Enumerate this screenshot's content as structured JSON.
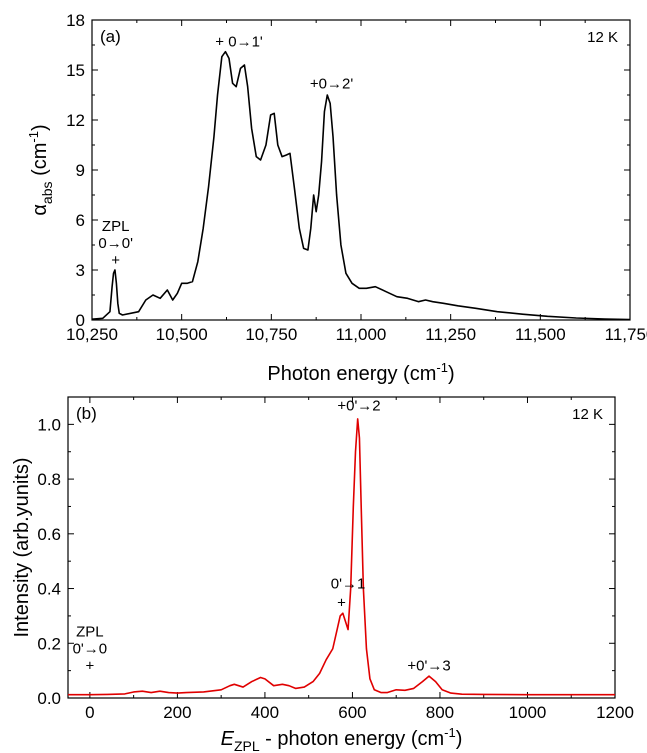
{
  "chart_data": [
    {
      "type": "line",
      "panel_label": "(a)",
      "temperature": "12 K",
      "xlabel": "Photon energy (cm",
      "xlabel_sup": "-1",
      "xlabel_end": ")",
      "ylabel_main": "α",
      "ylabel_sub": "abs",
      "ylabel_rest": " (cm",
      "ylabel_sup": "-1",
      "ylabel_end": ")",
      "xlim": [
        10250,
        11750
      ],
      "ylim": [
        0,
        18
      ],
      "xticks": [
        10250,
        10500,
        10750,
        11000,
        11250,
        11500,
        11750
      ],
      "xtick_labels": [
        "10,250",
        "10,500",
        "10,750",
        "11,000",
        "11,250",
        "11,500",
        "11,750"
      ],
      "yticks": [
        0,
        3,
        6,
        9,
        12,
        15,
        18
      ],
      "ytick_labels": [
        "0",
        "3",
        "6",
        "9",
        "12",
        "15",
        "18"
      ],
      "line_color": "#000000",
      "annotations": [
        {
          "lines": [
            "ZPL",
            "0→0'",
            "+"
          ],
          "x": 10316,
          "y": 3.3
        },
        {
          "lines": [
            "+ 0→1'"
          ],
          "x": 10660,
          "y": 16.4
        },
        {
          "lines": [
            "+0→2'"
          ],
          "x": 10918,
          "y": 13.9
        }
      ],
      "series": [
        {
          "x": [
            10250,
            10280,
            10300,
            10306,
            10310,
            10314,
            10318,
            10322,
            10326,
            10335,
            10380,
            10400,
            10420,
            10440,
            10460,
            10475,
            10488,
            10500,
            10515,
            10530,
            10545,
            10560,
            10575,
            10590,
            10600,
            10612,
            10622,
            10632,
            10642,
            10652,
            10664,
            10675,
            10684,
            10695,
            10708,
            10720,
            10735,
            10748,
            10758,
            10768,
            10780,
            10792,
            10802,
            10815,
            10828,
            10840,
            10852,
            10860,
            10868,
            10875,
            10882,
            10890,
            10898,
            10906,
            10914,
            10922,
            10932,
            10944,
            10958,
            10975,
            10995,
            11015,
            11040,
            11070,
            11100,
            11130,
            11160,
            11180,
            11200,
            11230,
            11270,
            11320,
            11380,
            11450,
            11520,
            11600,
            11680,
            11750
          ],
          "y": [
            0.05,
            0.1,
            0.5,
            2.0,
            2.8,
            3.0,
            2.2,
            1.0,
            0.4,
            0.3,
            0.5,
            1.2,
            1.5,
            1.3,
            1.8,
            1.2,
            1.6,
            2.2,
            2.2,
            2.3,
            3.5,
            5.5,
            8.0,
            11.0,
            13.5,
            15.8,
            16.1,
            15.7,
            14.2,
            14.0,
            15.1,
            15.3,
            14.0,
            11.5,
            9.8,
            9.6,
            10.5,
            12.3,
            12.4,
            10.5,
            9.8,
            9.9,
            10.0,
            7.8,
            5.5,
            4.3,
            4.2,
            5.5,
            7.5,
            6.5,
            7.5,
            9.5,
            12.5,
            13.5,
            13.0,
            11.0,
            7.5,
            4.5,
            2.8,
            2.2,
            1.9,
            1.9,
            2.0,
            1.7,
            1.4,
            1.3,
            1.1,
            1.2,
            1.1,
            1.0,
            0.85,
            0.7,
            0.5,
            0.35,
            0.22,
            0.12,
            0.06,
            0.03
          ]
        }
      ]
    },
    {
      "type": "line",
      "panel_label": "(b)",
      "temperature": "12 K",
      "xlabel_italic": "E",
      "xlabel_sub": "ZPL",
      "xlabel": " - photon energy (cm",
      "xlabel_sup": "-1",
      "xlabel_end": ")",
      "ylabel": "Intensity (arb.yunits)",
      "xlim": [
        -50,
        1200
      ],
      "ylim": [
        0,
        1.1
      ],
      "xticks": [
        0,
        200,
        400,
        600,
        800,
        1000,
        1200
      ],
      "xtick_labels": [
        "0",
        "200",
        "400",
        "600",
        "800",
        "1000",
        "1200"
      ],
      "yticks": [
        0.0,
        0.2,
        0.4,
        0.6,
        0.8,
        1.0
      ],
      "ytick_labels": [
        "0.0",
        "0.2",
        "0.4",
        "0.6",
        "0.8",
        "1.0"
      ],
      "line_color": "#e00000",
      "annotations": [
        {
          "lines": [
            "ZPL",
            "0'→0",
            "+"
          ],
          "x": 0,
          "y": 0.1
        },
        {
          "lines": [
            "0'→1"
          ],
          "x": 590,
          "y": 0.4
        },
        {
          "lines": [
            "+"
          ],
          "x": 575,
          "y": 0.33
        },
        {
          "lines": [
            "+0'→2"
          ],
          "x": 615,
          "y": 1.05
        },
        {
          "lines": [
            "+0'→3"
          ],
          "x": 775,
          "y": 0.1
        }
      ],
      "series": [
        {
          "x": [
            -50,
            -20,
            0,
            40,
            80,
            100,
            120,
            140,
            160,
            180,
            200,
            220,
            260,
            300,
            320,
            330,
            350,
            370,
            390,
            400,
            420,
            440,
            455,
            470,
            490,
            510,
            525,
            540,
            555,
            565,
            572,
            578,
            584,
            590,
            596,
            602,
            607,
            612,
            616,
            620,
            625,
            632,
            640,
            650,
            665,
            680,
            700,
            720,
            740,
            760,
            775,
            790,
            805,
            825,
            850,
            900,
            1000,
            1100,
            1200
          ],
          "y": [
            0.012,
            0.012,
            0.012,
            0.013,
            0.015,
            0.022,
            0.025,
            0.02,
            0.025,
            0.02,
            0.018,
            0.02,
            0.022,
            0.03,
            0.045,
            0.05,
            0.04,
            0.06,
            0.075,
            0.07,
            0.045,
            0.05,
            0.045,
            0.035,
            0.04,
            0.06,
            0.09,
            0.14,
            0.18,
            0.25,
            0.3,
            0.31,
            0.28,
            0.25,
            0.4,
            0.7,
            0.9,
            1.02,
            0.95,
            0.7,
            0.4,
            0.18,
            0.07,
            0.03,
            0.02,
            0.02,
            0.03,
            0.028,
            0.035,
            0.06,
            0.08,
            0.06,
            0.03,
            0.018,
            0.014,
            0.013,
            0.012,
            0.012,
            0.012
          ]
        }
      ]
    }
  ]
}
